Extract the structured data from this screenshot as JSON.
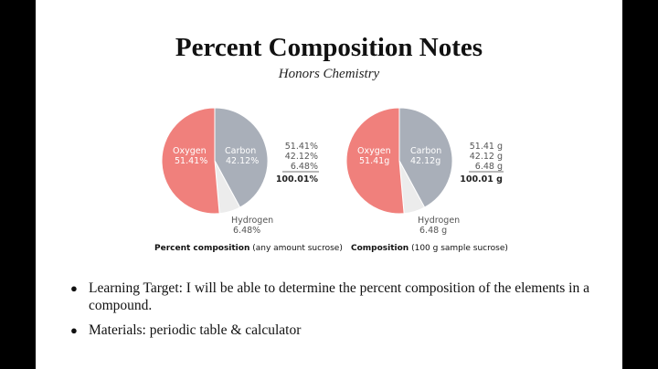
{
  "slide": {
    "title": "Percent Composition Notes",
    "subtitle": "Honors Chemistry"
  },
  "colors": {
    "oxygen": "#f0807c",
    "carbon": "#a9afb9",
    "hydrogen": "#ececec"
  },
  "chart_data": [
    {
      "type": "pie",
      "title": "",
      "slices": [
        {
          "label": "Carbon",
          "value_label": "42.12%",
          "value": 42.12
        },
        {
          "label": "Hydrogen",
          "value_label": "6.48%",
          "value": 6.48
        },
        {
          "label": "Oxygen",
          "value_label": "51.41%",
          "value": 51.41
        }
      ],
      "column_values": [
        "51.41%",
        "42.12%",
        "6.48%"
      ],
      "total": "100.01%",
      "caption_bold": "Percent composition",
      "caption_rest": " (any amount sucrose)"
    },
    {
      "type": "pie",
      "title": "",
      "slices": [
        {
          "label": "Carbon",
          "value_label": "42.12g",
          "value": 42.12
        },
        {
          "label": "Hydrogen",
          "value_label": "6.48 g",
          "value": 6.48
        },
        {
          "label": "Oxygen",
          "value_label": "51.41g",
          "value": 51.41
        }
      ],
      "column_values": [
        "51.41 g",
        "42.12 g",
        "6.48 g"
      ],
      "total": "100.01 g",
      "caption_bold": "Composition",
      "caption_rest": " (100 g sample sucrose)"
    }
  ],
  "bullets": [
    {
      "marker": "●",
      "text": "Learning Target: I will be able to determine the percent composition of the elements in a compound."
    },
    {
      "marker": "●",
      "text": "Materials: periodic table & calculator"
    }
  ]
}
